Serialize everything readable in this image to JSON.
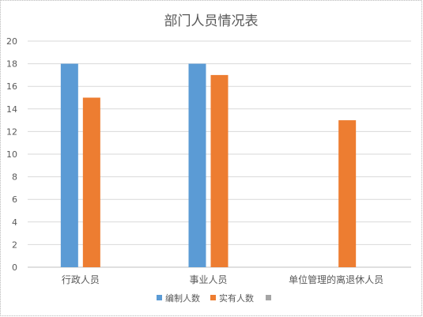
{
  "chart_data": {
    "type": "bar",
    "title": "部门人员情况表",
    "xlabel": "",
    "ylabel": "",
    "categories": [
      "行政人员",
      "事业人员",
      "单位管理的离退休人员"
    ],
    "series": [
      {
        "name": "编制人数",
        "color": "#5B9BD5",
        "values": [
          18,
          18,
          null
        ]
      },
      {
        "name": "实有人数",
        "color": "#ED7D31",
        "values": [
          15,
          17,
          13
        ]
      },
      {
        "name": "",
        "color": "#A5A5A5",
        "values": [
          null,
          null,
          null
        ]
      }
    ],
    "ylim": [
      0,
      20
    ],
    "yticks": [
      0,
      2,
      4,
      6,
      8,
      10,
      12,
      14,
      16,
      18,
      20
    ],
    "grid": true,
    "legend_position": "bottom"
  }
}
